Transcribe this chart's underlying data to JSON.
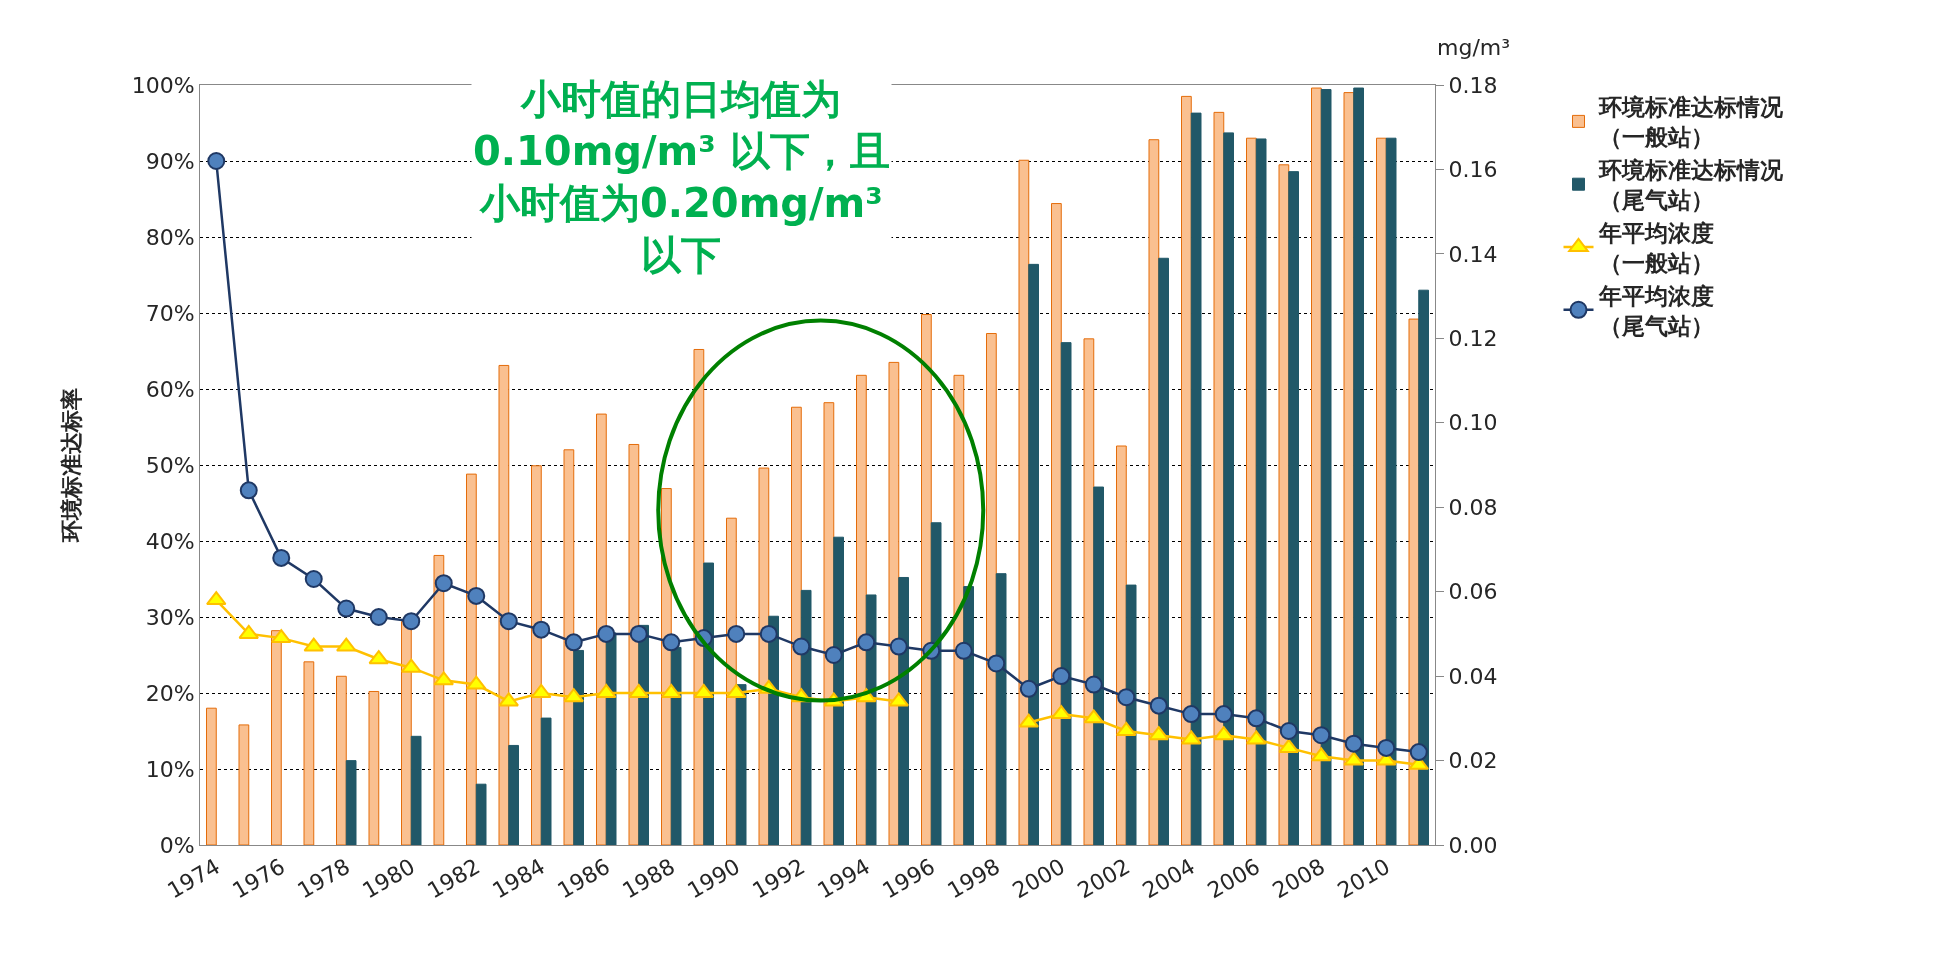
{
  "chart_data": {
    "type": "bar",
    "ylabel": "环境标准达标率",
    "y2label": "mg/m³",
    "annotations": [
      "小时值的日均值为0.10mg/m³ 以下，且小时值为0.20mg/m³ 以下"
    ],
    "x": [
      1974,
      1975,
      1976,
      1977,
      1978,
      1979,
      1980,
      1981,
      1982,
      1983,
      1984,
      1985,
      1986,
      1987,
      1988,
      1989,
      1990,
      1991,
      1992,
      1993,
      1994,
      1995,
      1996,
      1997,
      1998,
      1999,
      2000,
      2001,
      2002,
      2003,
      2004,
      2005,
      2006,
      2007,
      2008,
      2009,
      2010,
      2011
    ],
    "xlim": [
      1973.5,
      2011.5
    ],
    "xticks": [
      1974,
      1976,
      1978,
      1980,
      1982,
      1984,
      1986,
      1988,
      1990,
      1992,
      1994,
      1996,
      1998,
      2000,
      2002,
      2004,
      2006,
      2008,
      2010
    ],
    "ylim": [
      0,
      100
    ],
    "yticks": [
      {
        "value": 0,
        "label": "0%"
      },
      {
        "value": 10,
        "label": "10%"
      },
      {
        "value": 20,
        "label": "20%"
      },
      {
        "value": 30,
        "label": "30%"
      },
      {
        "value": 40,
        "label": "40%"
      },
      {
        "value": 50,
        "label": "50%"
      },
      {
        "value": 60,
        "label": "60%"
      },
      {
        "value": 70,
        "label": "70%"
      },
      {
        "value": 80,
        "label": "80%"
      },
      {
        "value": 90,
        "label": "90%"
      },
      {
        "value": 100,
        "label": "100%"
      }
    ],
    "y2lim": [
      0,
      0.18
    ],
    "y2ticks": [
      {
        "value": 0,
        "label": "0.00"
      },
      {
        "value": 0.02,
        "label": "0.02"
      },
      {
        "value": 0.04,
        "label": "0.04"
      },
      {
        "value": 0.06,
        "label": "0.06"
      },
      {
        "value": 0.08,
        "label": "0.08"
      },
      {
        "value": 0.1,
        "label": "0.10"
      },
      {
        "value": 0.12,
        "label": "0.12"
      },
      {
        "value": 0.14,
        "label": "0.14"
      },
      {
        "value": 0.16,
        "label": "0.16"
      },
      {
        "value": 0.18,
        "label": "0.18"
      }
    ],
    "grid": "y",
    "legend": "right",
    "series": [
      {
        "name": "环境标准达标情况（一般站）",
        "color": "#fac090",
        "values": [
          18.0,
          15.8,
          28.2,
          24.1,
          22.2,
          20.2,
          29.4,
          38.1,
          48.8,
          63.1,
          49.9,
          52.0,
          56.7,
          52.7,
          46.9,
          65.2,
          43.0,
          49.6,
          57.6,
          58.2,
          61.8,
          63.5,
          69.8,
          61.8,
          67.3,
          90.1,
          84.4,
          66.6,
          52.5,
          92.8,
          98.5,
          96.4,
          93.0,
          89.5,
          99.6,
          99.0,
          93.0,
          69.2
        ]
      },
      {
        "name": "环境标准达标情况（尾气站）",
        "color": "#215868",
        "values": [
          null,
          null,
          null,
          null,
          11.1,
          null,
          14.3,
          null,
          8.0,
          13.1,
          16.7,
          25.6,
          27.9,
          28.9,
          26.0,
          37.1,
          21.1,
          30.1,
          33.5,
          40.5,
          32.9,
          35.2,
          42.4,
          34.0,
          35.7,
          76.4,
          66.1,
          47.1,
          34.2,
          77.2,
          96.3,
          93.7,
          92.9,
          88.6,
          99.4,
          99.6,
          93.0,
          73.0
        ]
      },
      {
        "name": "年平均浓度（一般站）",
        "type": "line",
        "axis": "y2",
        "marker": "triangle",
        "color": "#ffc000",
        "values": [
          0.058,
          0.05,
          0.049,
          0.047,
          0.047,
          0.044,
          0.042,
          0.039,
          0.038,
          0.034,
          0.036,
          0.035,
          0.036,
          0.036,
          0.036,
          0.036,
          0.036,
          0.037,
          0.035,
          0.034,
          0.035,
          0.034,
          null,
          null,
          null,
          0.029,
          0.031,
          0.03,
          0.027,
          0.026,
          0.025,
          0.026,
          0.025,
          0.023,
          0.021,
          0.02,
          0.02,
          0.019
        ]
      },
      {
        "name": "年平均浓度（尾气站）",
        "type": "line",
        "axis": "y2",
        "marker": "circle",
        "color": "#1f3864",
        "values": [
          0.162,
          0.084,
          0.068,
          0.063,
          0.056,
          0.054,
          0.053,
          0.062,
          0.059,
          0.053,
          0.051,
          0.048,
          0.05,
          0.05,
          0.048,
          0.049,
          0.05,
          0.05,
          0.047,
          0.045,
          0.048,
          0.047,
          0.046,
          0.046,
          0.043,
          0.037,
          0.04,
          0.038,
          0.035,
          0.033,
          0.031,
          0.031,
          0.03,
          0.027,
          0.026,
          0.024,
          0.023,
          0.022
        ]
      }
    ]
  }
}
